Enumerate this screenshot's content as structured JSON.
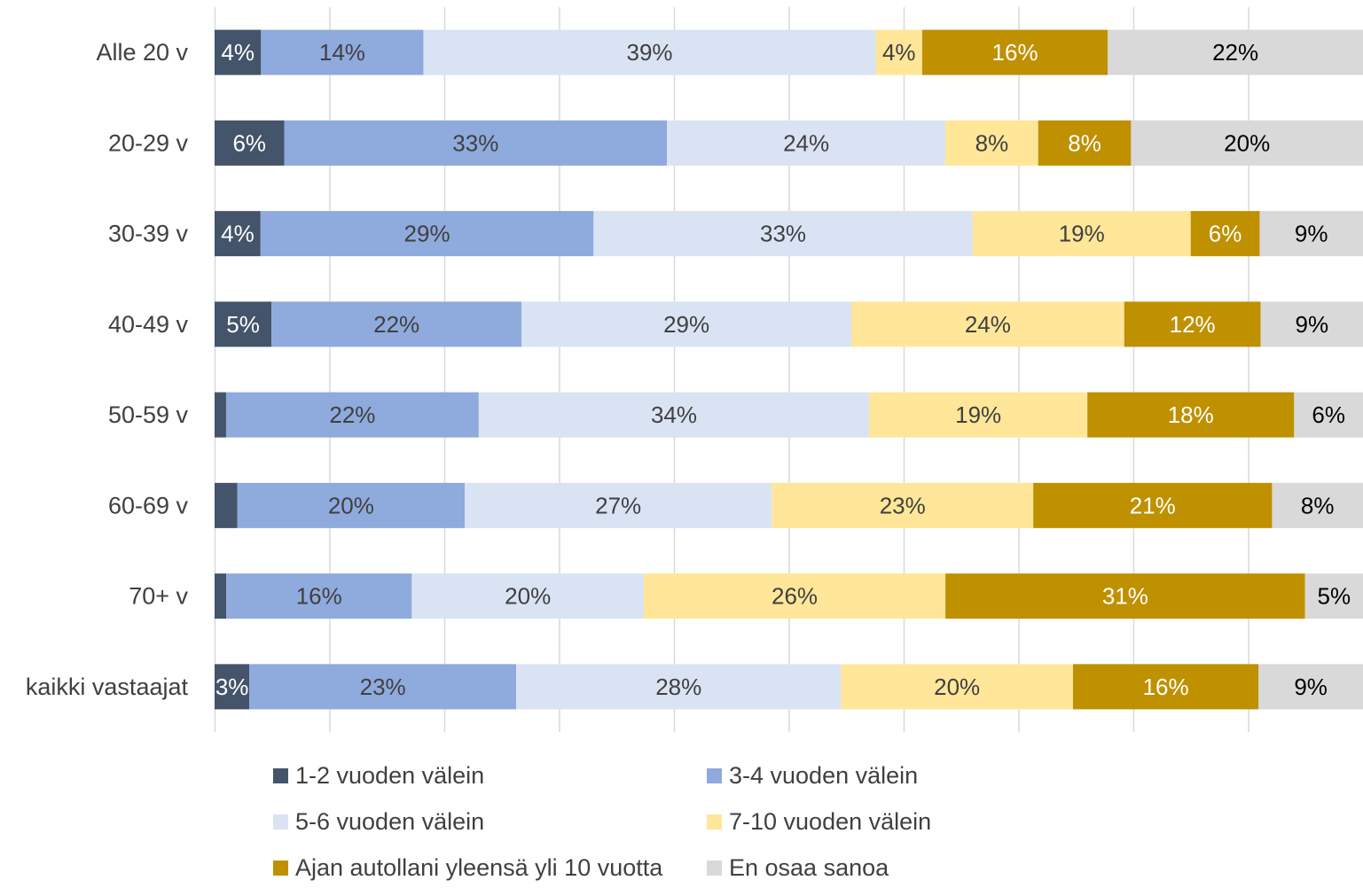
{
  "chart_data": {
    "type": "bar",
    "orientation": "horizontal",
    "stacked": "100%",
    "categories": [
      "Alle 20 v",
      "20-29 v",
      "30-39 v",
      "40-49 v",
      "50-59 v",
      "60-69 v",
      "70+ v",
      "kaikki vastaajat"
    ],
    "series": [
      {
        "name": "1-2 vuoden välein",
        "color": "#44546a",
        "label_color": "#ffffff",
        "values": [
          4,
          6,
          4,
          5,
          1,
          2,
          1,
          3
        ],
        "labels": [
          "4%",
          "6%",
          "4%",
          "5%",
          "",
          "",
          "",
          "3%"
        ]
      },
      {
        "name": "3-4 vuoden välein",
        "color": "#8faadc",
        "label_color": "#404040",
        "values": [
          14,
          33,
          29,
          22,
          22,
          20,
          16,
          23
        ],
        "labels": [
          "14%",
          "33%",
          "29%",
          "22%",
          "22%",
          "20%",
          "16%",
          "23%"
        ]
      },
      {
        "name": "5-6 vuoden välein",
        "color": "#dae3f3",
        "label_color": "#404040",
        "values": [
          39,
          24,
          33,
          29,
          34,
          27,
          20,
          28
        ],
        "labels": [
          "39%",
          "24%",
          "33%",
          "29%",
          "34%",
          "27%",
          "20%",
          "28%"
        ]
      },
      {
        "name": "7-10 vuoden välein",
        "color": "#ffe699",
        "label_color": "#404040",
        "values": [
          4,
          8,
          19,
          24,
          19,
          23,
          26,
          20
        ],
        "labels": [
          "4%",
          "8%",
          "19%",
          "24%",
          "19%",
          "23%",
          "26%",
          "20%"
        ]
      },
      {
        "name": "Ajan autollani yleensä yli 10 vuotta",
        "color": "#bf9000",
        "label_color": "#ffffff",
        "values": [
          16,
          8,
          6,
          12,
          18,
          21,
          31,
          16
        ],
        "labels": [
          "16%",
          "8%",
          "6%",
          "12%",
          "18%",
          "21%",
          "31%",
          "16%"
        ]
      },
      {
        "name": "En osaa sanoa",
        "color": "#d9d9d9",
        "label_color": "#000000",
        "values": [
          22,
          20,
          9,
          9,
          6,
          8,
          5,
          9
        ],
        "labels": [
          "22%",
          "20%",
          "9%",
          "9%",
          "6%",
          "8%",
          "5%",
          "9%"
        ]
      }
    ],
    "xlim": [
      0,
      100
    ],
    "grid": true,
    "legend_position": "bottom"
  }
}
